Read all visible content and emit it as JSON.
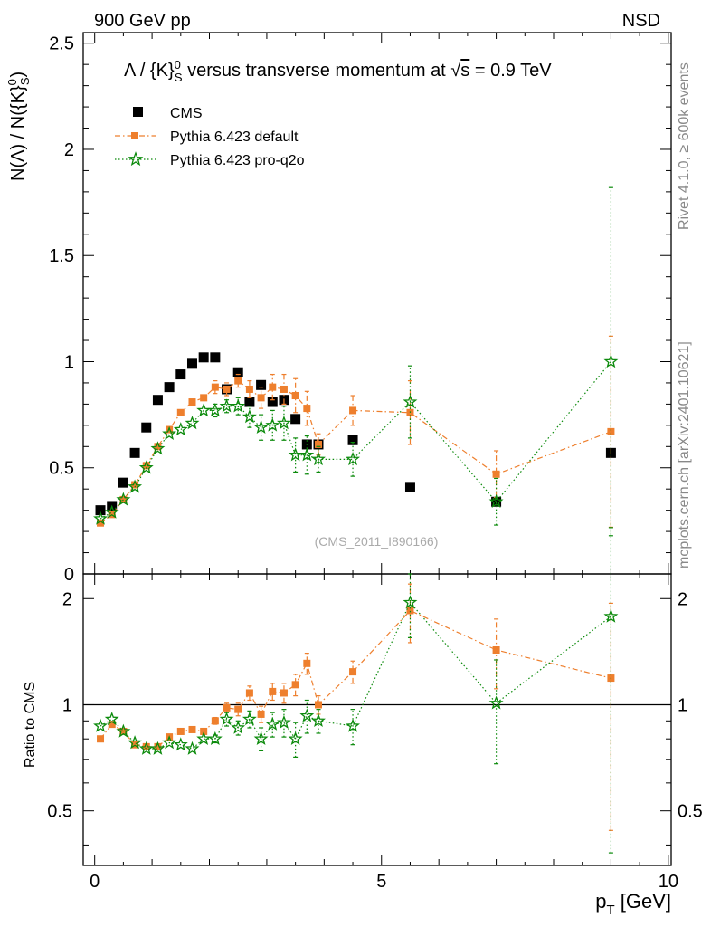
{
  "header": {
    "left": "900 GeV pp",
    "right": "NSD"
  },
  "side_labels": {
    "rivet": "Rivet 4.1.0, ≥ 600k events",
    "mcplots": "mcplots.cern.ch [arXiv:2401.10621]"
  },
  "chart_data": {
    "type": "scatter",
    "title": "Λ / {K}⁰S versus transverse momentum at √s = 0.9 TeV",
    "title_parts": {
      "pre": "Λ / {K}",
      "sup": "0",
      "sub": "S",
      "mid": " versus transverse momentum at ",
      "sqrt": "√",
      "s": "s",
      "post": " = 0.9 TeV"
    },
    "ylabel": "N(Λ)  /  N({K}⁰S)",
    "ylabel_parts": {
      "pre": "N(Λ)  /  N({K}",
      "sup": "0",
      "sub": "S",
      "post": ")"
    },
    "xlabel": "pT [GeV]",
    "xlabel_parts": {
      "p": "p",
      "sub": "T",
      "rest": " [GeV]"
    },
    "ratio_ylabel": "Ratio to CMS",
    "watermark": "(CMS_2011_I890166)",
    "xlim": [
      -0.2,
      10.05
    ],
    "ylim": [
      0,
      2.55
    ],
    "ratio_ylim": [
      0.35,
      2.35
    ],
    "x_ticks": [
      "0",
      "5",
      "10"
    ],
    "y_ticks": [
      "0",
      "0.5",
      "1",
      "1.5",
      "2",
      "2.5"
    ],
    "ratio_ticks": [
      "0.5",
      "1",
      "2"
    ],
    "legend_position": "top-left",
    "series": [
      {
        "name": "CMS",
        "marker": "square",
        "color": "#000000",
        "x": [
          0.1,
          0.3,
          0.5,
          0.7,
          0.9,
          1.1,
          1.3,
          1.5,
          1.7,
          1.9,
          2.1,
          2.3,
          2.5,
          2.7,
          2.9,
          3.1,
          3.3,
          3.5,
          3.7,
          3.9,
          4.5,
          5.5,
          7.0,
          9.0
        ],
        "y": [
          0.3,
          0.32,
          0.43,
          0.57,
          0.69,
          0.82,
          0.88,
          0.94,
          0.99,
          1.02,
          1.02,
          0.87,
          0.95,
          0.81,
          0.89,
          0.81,
          0.82,
          0.73,
          0.61,
          0.61,
          0.63,
          0.41,
          0.34,
          0.57
        ]
      },
      {
        "name": "Pythia 6.423 default",
        "marker": "filled-square",
        "color": "#ee7f2d",
        "line": "dash-dot",
        "x": [
          0.1,
          0.3,
          0.5,
          0.7,
          0.9,
          1.1,
          1.3,
          1.5,
          1.7,
          1.9,
          2.1,
          2.3,
          2.5,
          2.7,
          2.9,
          3.1,
          3.3,
          3.5,
          3.7,
          3.9,
          4.5,
          5.5,
          7.0,
          9.0
        ],
        "y": [
          0.24,
          0.28,
          0.35,
          0.42,
          0.51,
          0.6,
          0.68,
          0.76,
          0.81,
          0.83,
          0.88,
          0.87,
          0.91,
          0.87,
          0.83,
          0.88,
          0.87,
          0.84,
          0.78,
          0.61,
          0.77,
          0.76,
          0.47,
          0.67
        ],
        "err": [
          0,
          0,
          0,
          0,
          0,
          0,
          0,
          0,
          0,
          0,
          0.03,
          0.03,
          0.03,
          0.04,
          0.05,
          0.06,
          0.07,
          0.08,
          0.08,
          0.05,
          0.07,
          0.15,
          0.11,
          0.45
        ],
        "ratio": [
          0.8,
          0.88,
          0.84,
          0.77,
          0.76,
          0.76,
          0.81,
          0.84,
          0.85,
          0.84,
          0.9,
          0.98,
          0.97,
          1.08,
          0.94,
          1.09,
          1.08,
          1.14,
          1.31,
          1.0,
          1.24,
          1.85,
          1.43,
          1.19
        ],
        "ratio_err": [
          0,
          0,
          0,
          0,
          0,
          0,
          0,
          0,
          0,
          0,
          0.02,
          0.03,
          0.04,
          0.05,
          0.05,
          0.06,
          0.07,
          0.08,
          0.09,
          0.06,
          0.09,
          0.35,
          0.32,
          0.75
        ]
      },
      {
        "name": "Pythia 6.423 pro-q2o",
        "marker": "star",
        "color": "#0b8a0b",
        "line": "dotted",
        "x": [
          0.1,
          0.3,
          0.5,
          0.7,
          0.9,
          1.1,
          1.3,
          1.5,
          1.7,
          1.9,
          2.1,
          2.3,
          2.5,
          2.7,
          2.9,
          3.1,
          3.3,
          3.5,
          3.7,
          3.9,
          4.5,
          5.5,
          7.0,
          9.0
        ],
        "y": [
          0.26,
          0.29,
          0.35,
          0.41,
          0.5,
          0.59,
          0.66,
          0.68,
          0.71,
          0.77,
          0.77,
          0.79,
          0.79,
          0.74,
          0.69,
          0.7,
          0.71,
          0.56,
          0.56,
          0.54,
          0.54,
          0.81,
          0.34,
          1.0
        ],
        "err": [
          0,
          0,
          0,
          0,
          0,
          0,
          0,
          0,
          0,
          0,
          0.03,
          0.03,
          0.04,
          0.05,
          0.06,
          0.07,
          0.08,
          0.08,
          0.09,
          0.06,
          0.08,
          0.17,
          0.11,
          0.82
        ],
        "ratio": [
          0.87,
          0.91,
          0.84,
          0.78,
          0.75,
          0.75,
          0.78,
          0.77,
          0.75,
          0.8,
          0.8,
          0.91,
          0.86,
          0.91,
          0.8,
          0.88,
          0.89,
          0.8,
          0.93,
          0.9,
          0.87,
          1.95,
          1.01,
          1.78
        ],
        "ratio_err": [
          0,
          0,
          0,
          0,
          0,
          0,
          0,
          0,
          0,
          0,
          0.02,
          0.04,
          0.04,
          0.05,
          0.06,
          0.07,
          0.08,
          0.09,
          0.1,
          0.07,
          0.1,
          0.4,
          0.33,
          1.4
        ]
      }
    ]
  }
}
